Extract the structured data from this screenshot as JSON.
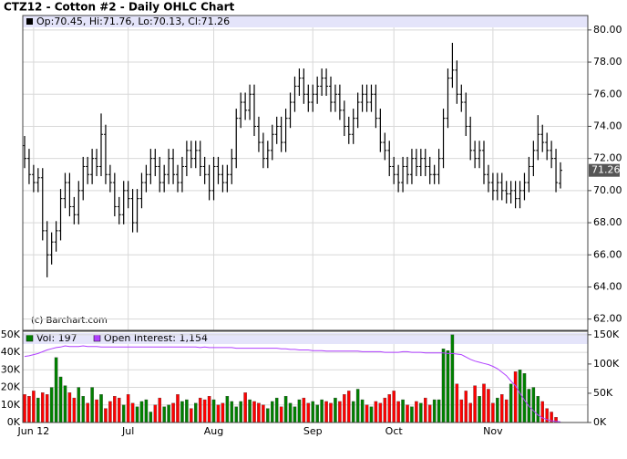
{
  "chart_data": [
    {
      "type": "ohlc",
      "title": "CTZ12 - Cotton #2 - Daily OHLC Chart",
      "legend_text": "Op:70.45, Hi:71.76, Lo:70.13, Cl:71.26",
      "credit": "(c) Barchart.com",
      "color": "#000000",
      "grid": true,
      "open": [
        72.8,
        72.0,
        71.0,
        70.5,
        70.8,
        67.5,
        66.0,
        66.8,
        67.5,
        69.5,
        70.5,
        69.0,
        68.5,
        70.0,
        71.5,
        71.0,
        72.0,
        71.5,
        73.5,
        71.0,
        70.5,
        69.0,
        68.5,
        70.0,
        69.5,
        68.0,
        69.5,
        70.5,
        71.0,
        72.0,
        71.5,
        70.5,
        71.0,
        72.0,
        71.0,
        70.5,
        71.5,
        72.5,
        72.0,
        72.5,
        71.5,
        71.0,
        70.0,
        71.5,
        71.0,
        70.5,
        71.0,
        72.0,
        74.5,
        75.5,
        75.0,
        76.0,
        74.0,
        73.0,
        72.0,
        72.5,
        73.5,
        74.0,
        73.0,
        74.5,
        75.5,
        76.5,
        77.0,
        76.0,
        75.5,
        76.0,
        76.5,
        77.0,
        76.5,
        75.5,
        76.0,
        75.0,
        74.0,
        73.5,
        74.5,
        75.5,
        76.0,
        75.5,
        76.0,
        74.5,
        73.0,
        72.5,
        71.5,
        71.0,
        70.5,
        71.5,
        71.0,
        72.0,
        71.5,
        72.0,
        71.5,
        71.0,
        71.0,
        72.0,
        74.5,
        77.0,
        77.5,
        76.0,
        75.5,
        74.0,
        72.5,
        72.0,
        72.5,
        71.0,
        70.5,
        70.0,
        70.5,
        70.0,
        69.8,
        70.0,
        69.5,
        70.0,
        70.5,
        71.5,
        72.5,
        73.5,
        73.0,
        72.5,
        72.0,
        70.45
      ],
      "high": [
        73.4,
        72.6,
        71.6,
        71.4,
        71.4,
        68.1,
        67.4,
        68.1,
        70.1,
        71.1,
        71.1,
        69.6,
        70.6,
        72.1,
        72.1,
        72.6,
        72.6,
        74.8,
        74.1,
        71.6,
        71.1,
        69.6,
        70.6,
        70.6,
        70.1,
        70.1,
        71.1,
        71.6,
        72.6,
        72.6,
        72.1,
        71.6,
        72.6,
        72.6,
        71.6,
        72.1,
        73.1,
        73.1,
        73.1,
        73.1,
        72.1,
        71.6,
        72.1,
        72.1,
        71.6,
        71.6,
        72.6,
        75.1,
        76.1,
        76.1,
        76.6,
        76.6,
        74.6,
        73.6,
        73.1,
        74.1,
        74.6,
        74.6,
        75.1,
        76.1,
        77.1,
        77.6,
        77.6,
        76.6,
        76.6,
        77.1,
        77.6,
        77.6,
        77.1,
        76.6,
        76.6,
        75.6,
        74.6,
        75.1,
        76.1,
        76.6,
        76.6,
        76.6,
        76.6,
        75.1,
        73.6,
        73.1,
        72.1,
        71.6,
        72.1,
        72.1,
        72.6,
        72.6,
        72.6,
        72.6,
        72.1,
        71.6,
        72.6,
        75.1,
        77.6,
        79.2,
        78.1,
        76.6,
        76.1,
        74.6,
        73.1,
        73.1,
        73.1,
        71.6,
        71.1,
        71.1,
        71.1,
        70.6,
        70.6,
        70.6,
        70.6,
        71.1,
        72.1,
        73.1,
        74.7,
        74.1,
        73.6,
        73.1,
        72.6,
        71.76
      ],
      "low": [
        71.4,
        70.4,
        69.9,
        69.9,
        66.9,
        64.6,
        65.4,
        66.2,
        66.9,
        68.9,
        68.4,
        67.9,
        67.9,
        69.4,
        70.4,
        70.4,
        70.9,
        70.9,
        70.4,
        69.9,
        68.4,
        67.9,
        67.9,
        68.9,
        67.4,
        67.4,
        68.9,
        69.9,
        70.4,
        70.9,
        69.9,
        69.9,
        70.4,
        70.4,
        69.9,
        69.9,
        70.9,
        71.4,
        71.4,
        70.9,
        70.4,
        69.4,
        69.4,
        70.4,
        69.9,
        69.9,
        70.4,
        71.4,
        73.9,
        74.4,
        74.4,
        73.4,
        72.4,
        71.4,
        71.4,
        71.9,
        72.9,
        72.4,
        72.4,
        73.9,
        74.9,
        75.9,
        75.4,
        74.9,
        74.9,
        75.4,
        75.9,
        75.9,
        74.9,
        74.9,
        74.4,
        73.4,
        72.9,
        72.9,
        73.9,
        74.9,
        74.9,
        74.9,
        73.9,
        72.4,
        71.9,
        70.9,
        70.4,
        69.9,
        69.9,
        70.4,
        70.4,
        70.9,
        70.9,
        70.9,
        70.4,
        70.4,
        70.4,
        71.4,
        73.9,
        76.4,
        75.4,
        74.9,
        73.4,
        71.9,
        71.4,
        71.4,
        70.4,
        69.9,
        69.4,
        69.4,
        69.4,
        69.2,
        69.2,
        68.9,
        68.9,
        69.4,
        69.9,
        70.9,
        71.9,
        72.4,
        71.9,
        71.4,
        69.9,
        70.13
      ],
      "close": [
        72.0,
        71.0,
        70.5,
        70.8,
        67.5,
        66.0,
        66.8,
        67.5,
        69.5,
        70.5,
        69.0,
        68.5,
        70.0,
        71.5,
        71.0,
        72.0,
        71.5,
        73.5,
        71.0,
        70.5,
        69.0,
        68.5,
        70.0,
        69.5,
        68.0,
        69.5,
        70.5,
        71.0,
        72.0,
        71.5,
        70.5,
        71.0,
        72.0,
        71.0,
        70.5,
        71.5,
        72.5,
        72.0,
        72.5,
        71.5,
        71.0,
        70.0,
        71.5,
        71.0,
        70.5,
        71.0,
        72.0,
        74.5,
        75.5,
        75.0,
        76.0,
        74.0,
        73.0,
        72.0,
        72.5,
        73.5,
        74.0,
        73.0,
        74.5,
        75.5,
        76.5,
        77.0,
        76.0,
        75.5,
        76.0,
        76.5,
        77.0,
        76.5,
        75.5,
        76.0,
        75.0,
        74.0,
        73.5,
        74.5,
        75.5,
        76.0,
        75.5,
        76.0,
        74.5,
        73.0,
        72.5,
        71.5,
        71.0,
        70.5,
        71.5,
        71.0,
        72.0,
        71.5,
        72.0,
        71.5,
        71.0,
        71.0,
        72.0,
        74.5,
        77.0,
        77.5,
        76.0,
        75.5,
        74.0,
        72.5,
        72.0,
        72.5,
        71.0,
        70.5,
        70.0,
        70.5,
        70.0,
        69.8,
        70.0,
        69.5,
        70.0,
        70.5,
        71.5,
        72.5,
        73.5,
        73.0,
        72.5,
        72.0,
        70.5,
        71.26
      ],
      "last_price": 71.26,
      "ylim": [
        61.3,
        80.9
      ],
      "yticks": [
        {
          "value": 62,
          "label": "62.00"
        },
        {
          "value": 64,
          "label": "64.00"
        },
        {
          "value": 66,
          "label": "66.00"
        },
        {
          "value": 68,
          "label": "68.00"
        },
        {
          "value": 70,
          "label": "70.00"
        },
        {
          "value": 72,
          "label": "72.00"
        },
        {
          "value": 74,
          "label": "74.00"
        },
        {
          "value": 76,
          "label": "76.00"
        },
        {
          "value": 78,
          "label": "78.00"
        },
        {
          "value": 80,
          "label": "80.00"
        }
      ]
    },
    {
      "type": "bar",
      "up_color": "#008000",
      "down_color": "#ff0000",
      "grid": true,
      "categories": [
        null,
        null,
        "Jun 12",
        null,
        null,
        null,
        null,
        null,
        null,
        null,
        null,
        null,
        null,
        null,
        null,
        null,
        null,
        null,
        null,
        null,
        null,
        null,
        null,
        "Jul",
        null,
        null,
        null,
        null,
        null,
        null,
        null,
        null,
        null,
        null,
        null,
        null,
        null,
        null,
        null,
        null,
        null,
        null,
        "Aug",
        null,
        null,
        null,
        null,
        null,
        null,
        null,
        null,
        null,
        null,
        null,
        null,
        null,
        null,
        null,
        null,
        null,
        null,
        null,
        null,
        null,
        "Sep",
        null,
        null,
        null,
        null,
        null,
        null,
        null,
        null,
        null,
        null,
        null,
        null,
        null,
        null,
        null,
        null,
        null,
        "Oct",
        null,
        null,
        null,
        null,
        null,
        null,
        null,
        null,
        null,
        null,
        null,
        null,
        null,
        null,
        null,
        null,
        null,
        null,
        null,
        null,
        null,
        "Nov",
        null,
        null,
        null,
        null,
        null,
        null,
        null,
        null,
        null,
        null,
        null,
        null,
        null,
        null,
        null
      ],
      "series": [
        {
          "name": "Vol: 197",
          "values": [
            16000,
            15000,
            18000,
            14000,
            17000,
            16000,
            20000,
            37000,
            26000,
            21000,
            17000,
            14000,
            20000,
            15000,
            11000,
            20000,
            13000,
            16000,
            8000,
            12000,
            15000,
            14000,
            10000,
            16000,
            11000,
            9000,
            12000,
            13000,
            6000,
            10000,
            14000,
            9000,
            10000,
            11000,
            16000,
            12000,
            13000,
            8000,
            11000,
            14000,
            13000,
            15000,
            13000,
            10000,
            11000,
            15000,
            12000,
            9000,
            12000,
            17000,
            13000,
            12000,
            11000,
            10000,
            8000,
            12000,
            14000,
            9000,
            15000,
            11000,
            9000,
            13000,
            14000,
            11000,
            12000,
            10000,
            13000,
            12000,
            11000,
            14000,
            12000,
            16000,
            18000,
            12000,
            19000,
            13000,
            10000,
            9000,
            12000,
            11000,
            14000,
            16000,
            18000,
            12000,
            13000,
            10000,
            9000,
            12000,
            11000,
            14000,
            10000,
            13000,
            13000,
            42000,
            41000,
            50000,
            22000,
            13000,
            18000,
            11000,
            21000,
            15000,
            22000,
            19000,
            11000,
            14000,
            16000,
            13000,
            22000,
            29000,
            30000,
            28000,
            19000,
            20000,
            15000,
            12000,
            8000,
            6000,
            3000,
            197
          ]
        },
        {
          "name": "Open Interest: 1,154",
          "color": "#b040ff",
          "axis": "y2",
          "values": [
            113000,
            114000,
            116000,
            118000,
            121000,
            124000,
            126000,
            128000,
            129000,
            131000,
            130000,
            130000,
            130000,
            131000,
            130000,
            130000,
            130000,
            129000,
            129000,
            129000,
            129000,
            129000,
            129000,
            129000,
            129000,
            129000,
            129000,
            129000,
            129000,
            129000,
            129000,
            129000,
            129000,
            129000,
            129000,
            129000,
            129000,
            129000,
            129000,
            128000,
            129000,
            128000,
            128000,
            128000,
            128000,
            128000,
            128000,
            127000,
            127000,
            127000,
            127000,
            127000,
            127000,
            127000,
            127000,
            127000,
            127000,
            126000,
            126000,
            125000,
            125000,
            124000,
            124000,
            124000,
            123000,
            123000,
            123000,
            122000,
            122000,
            122000,
            122000,
            122000,
            122000,
            122000,
            122000,
            121000,
            121000,
            121000,
            121000,
            121000,
            120000,
            120000,
            120000,
            120000,
            121000,
            121000,
            120000,
            120000,
            120000,
            119000,
            119000,
            119000,
            119000,
            119000,
            118000,
            118000,
            117000,
            116000,
            112000,
            108000,
            105000,
            103000,
            101000,
            99000,
            96000,
            92000,
            86000,
            80000,
            71000,
            63000,
            50000,
            38000,
            28000,
            20000,
            13000,
            8000,
            5000,
            3000,
            2000,
            1154
          ]
        }
      ],
      "ylim": [
        0,
        52000
      ],
      "yticks": [
        {
          "value": 0,
          "label": "0K"
        },
        {
          "value": 10000,
          "label": "10K"
        },
        {
          "value": 20000,
          "label": "20K"
        },
        {
          "value": 30000,
          "label": "30K"
        },
        {
          "value": 40000,
          "label": "40K"
        },
        {
          "value": 50000,
          "label": "50K"
        }
      ],
      "y2lim": [
        0,
        156000
      ],
      "y2ticks": [
        {
          "value": 0,
          "label": "0K"
        },
        {
          "value": 50000,
          "label": "50K"
        },
        {
          "value": 100000,
          "label": "100K"
        },
        {
          "value": 150000,
          "label": "150K"
        }
      ]
    }
  ]
}
